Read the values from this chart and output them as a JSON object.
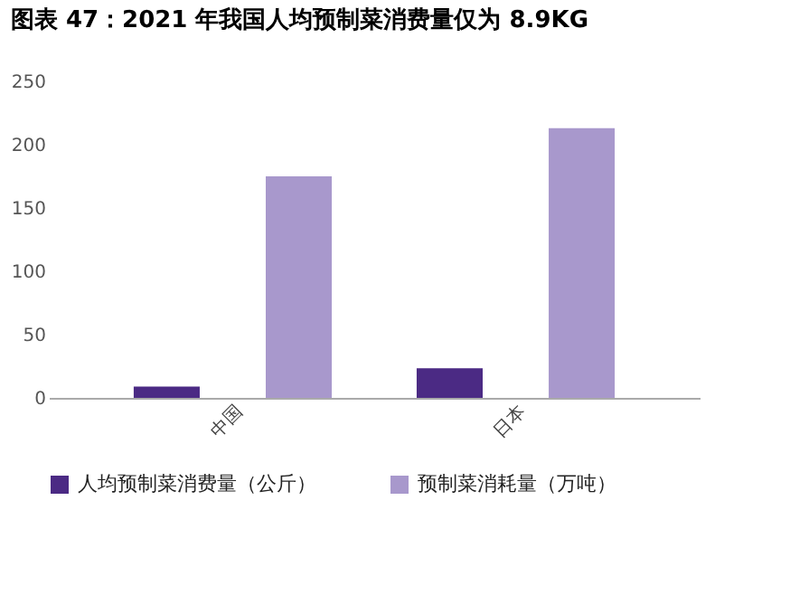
{
  "chart_data": {
    "type": "bar",
    "title": "图表 47：2021 年我国人均预制菜消费量仅为 8.9KG",
    "categories": [
      "中国",
      "日本"
    ],
    "series": [
      {
        "name": "人均预制菜消费量（公斤）",
        "color": "#4b2a84",
        "values": [
          8.9,
          23.4
        ]
      },
      {
        "name": "预制菜消耗量（万吨）",
        "color": "#a898cc",
        "values": [
          175,
          213
        ]
      }
    ],
    "ylim": [
      0,
      250
    ],
    "yticks": [
      0,
      50,
      100,
      150,
      200,
      250
    ],
    "grid": false,
    "legend": "bottom"
  }
}
